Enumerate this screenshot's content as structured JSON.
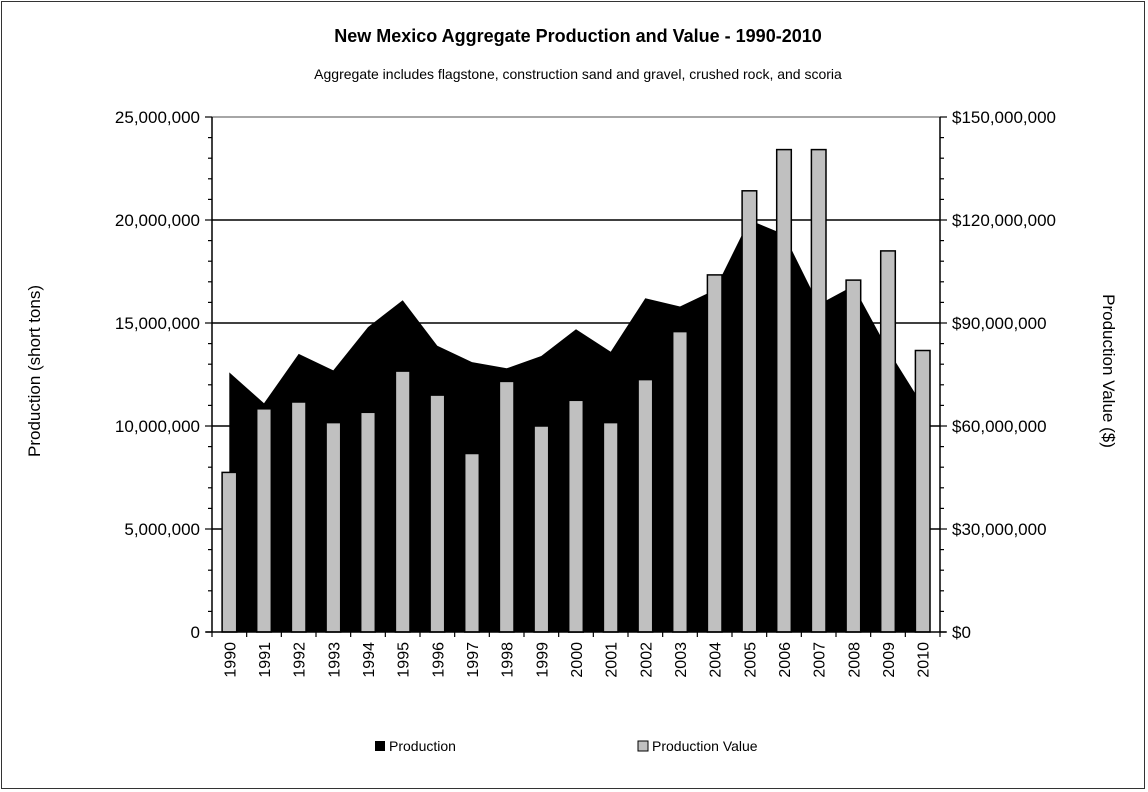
{
  "chart_data": {
    "type": "bar",
    "title": "New Mexico Aggregate Production and Value - 1990-2010",
    "subtitle": "Aggregate includes flagstone, construction sand and gravel, crushed rock, and scoria",
    "categories": [
      "1990",
      "1991",
      "1992",
      "1993",
      "1994",
      "1995",
      "1996",
      "1997",
      "1998",
      "1999",
      "2000",
      "2001",
      "2002",
      "2003",
      "2004",
      "2005",
      "2006",
      "2007",
      "2008",
      "2009",
      "2010"
    ],
    "ylabel": "Production (short tons)",
    "y2label": "Production Value ($)",
    "ylim": [
      0,
      25000000
    ],
    "y2lim": [
      0,
      150000000
    ],
    "yticks": [
      "0",
      "5,000,000",
      "10,000,000",
      "15,000,000",
      "20,000,000",
      "25,000,000"
    ],
    "y2ticks": [
      "$0",
      "$30,000,000",
      "$60,000,000",
      "$90,000,000",
      "$120,000,000",
      "$150,000,000"
    ],
    "grid": true,
    "legend_position": "bottom",
    "series": [
      {
        "name": "Production",
        "type": "area",
        "axis": "left",
        "color": "#000000",
        "values": [
          12600000,
          11100000,
          13500000,
          12700000,
          14800000,
          16100000,
          13900000,
          13100000,
          12800000,
          13400000,
          14700000,
          13600000,
          16200000,
          15800000,
          16600000,
          20000000,
          19300000,
          15900000,
          16800000,
          13700000,
          11000000
        ]
      },
      {
        "name": "Production Value",
        "type": "bar",
        "axis": "right",
        "color": "#c0c0c0",
        "values": [
          46500000,
          65000000,
          67000000,
          61000000,
          64000000,
          76000000,
          69000000,
          52000000,
          73000000,
          60000000,
          67500000,
          61000000,
          73500000,
          87500000,
          104000000,
          128500000,
          140500000,
          140500000,
          102500000,
          111000000,
          82000000
        ]
      }
    ]
  }
}
